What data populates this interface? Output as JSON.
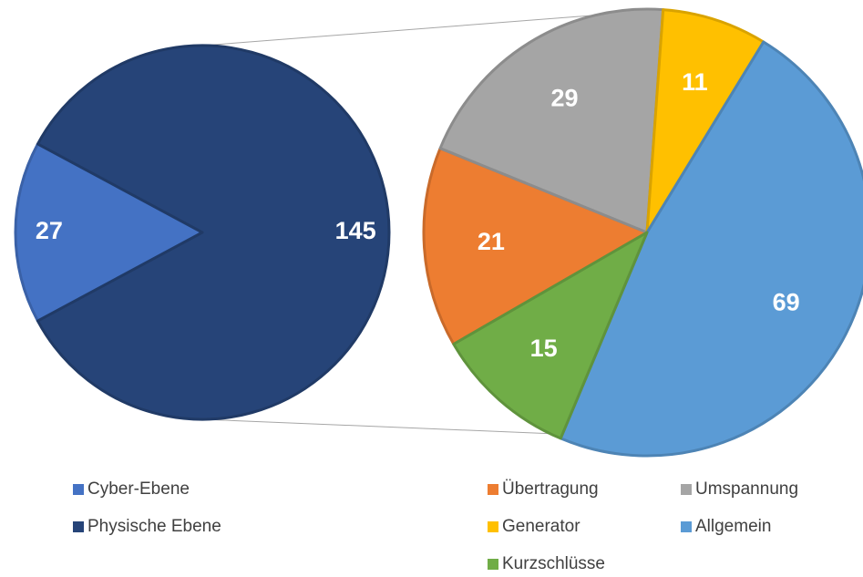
{
  "chart_data": [
    {
      "type": "pie",
      "categories": [
        "Cyber-Ebene",
        "Physische Ebene"
      ],
      "values": [
        27,
        145
      ],
      "colors": [
        "#4472c4",
        "#264478"
      ]
    },
    {
      "type": "pie",
      "categories": [
        "Übertragung",
        "Umspannung",
        "Generator",
        "Allgemein",
        "Kurzschlüsse"
      ],
      "values": [
        21,
        29,
        11,
        69,
        15
      ],
      "colors": [
        "#ed7d31",
        "#a5a5a5",
        "#ffc000",
        "#5b9bd5",
        "#70ad47"
      ]
    }
  ]
}
